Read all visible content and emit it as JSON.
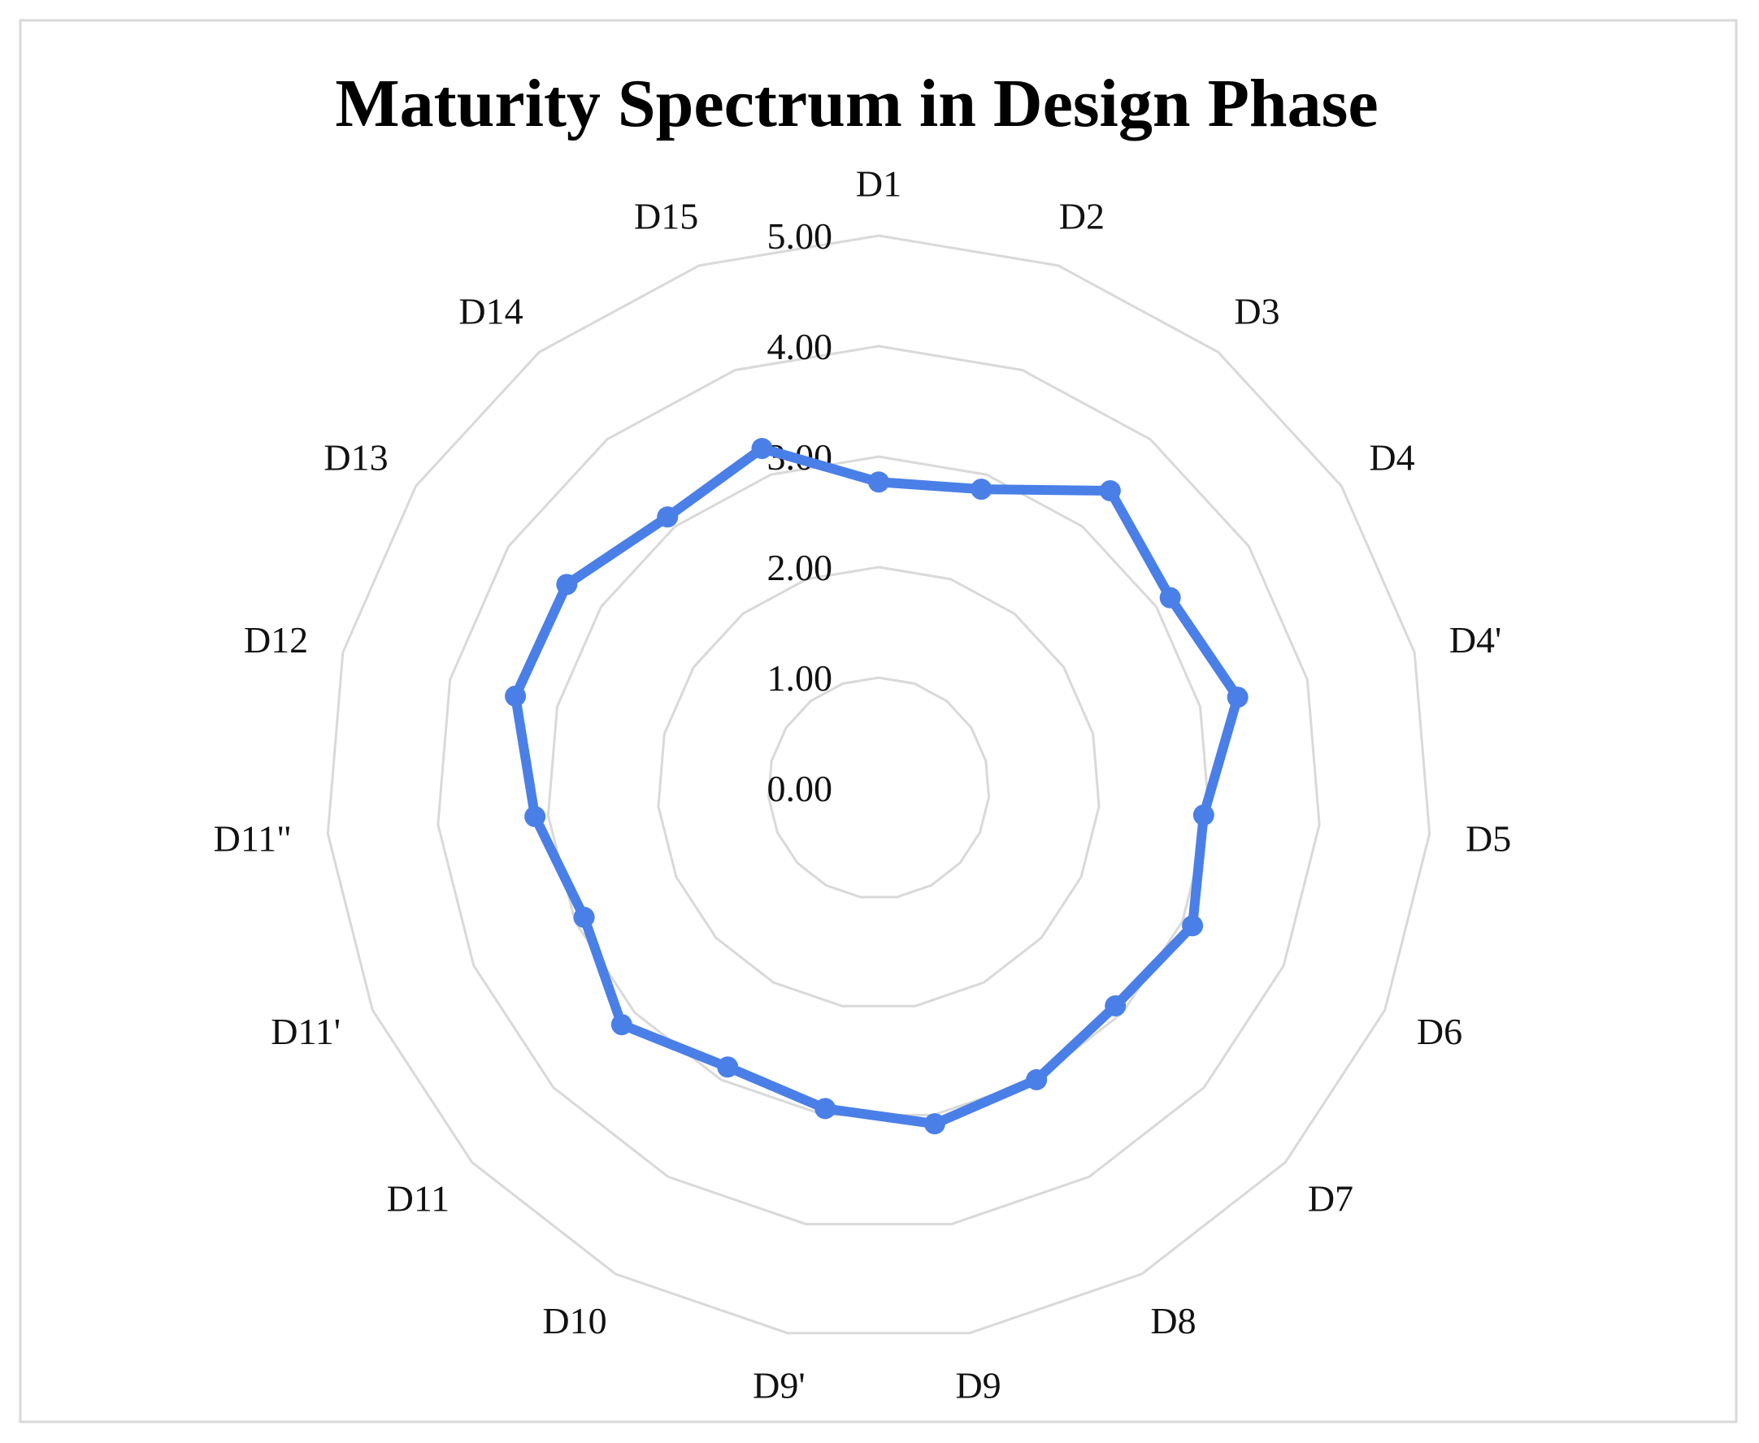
{
  "chart_data": {
    "type": "radar",
    "title": "Maturity Spectrum in Design Phase",
    "categories": [
      "D1",
      "D2",
      "D3",
      "D4",
      "D4'",
      "D5",
      "D6",
      "D7",
      "D8",
      "D9",
      "D9'",
      "D10",
      "D11",
      "D11'",
      "D11\"",
      "D12",
      "D13",
      "D14",
      "D15"
    ],
    "values": [
      2.77,
      2.86,
      3.41,
      3.15,
      3.35,
      2.95,
      3.1,
      2.91,
      3.0,
      3.08,
      2.94,
      2.87,
      3.16,
      2.91,
      3.12,
      3.39,
      3.37,
      3.11,
      3.25
    ],
    "ticks": [
      "0.00",
      "1.00",
      "2.00",
      "3.00",
      "4.00",
      "5.00"
    ],
    "rlim": [
      0,
      5
    ],
    "grid": true,
    "legend": "none",
    "colors": {
      "series": "#4a7fe8",
      "grid": "#d9d9d9",
      "border": "#d9d9d9"
    }
  }
}
